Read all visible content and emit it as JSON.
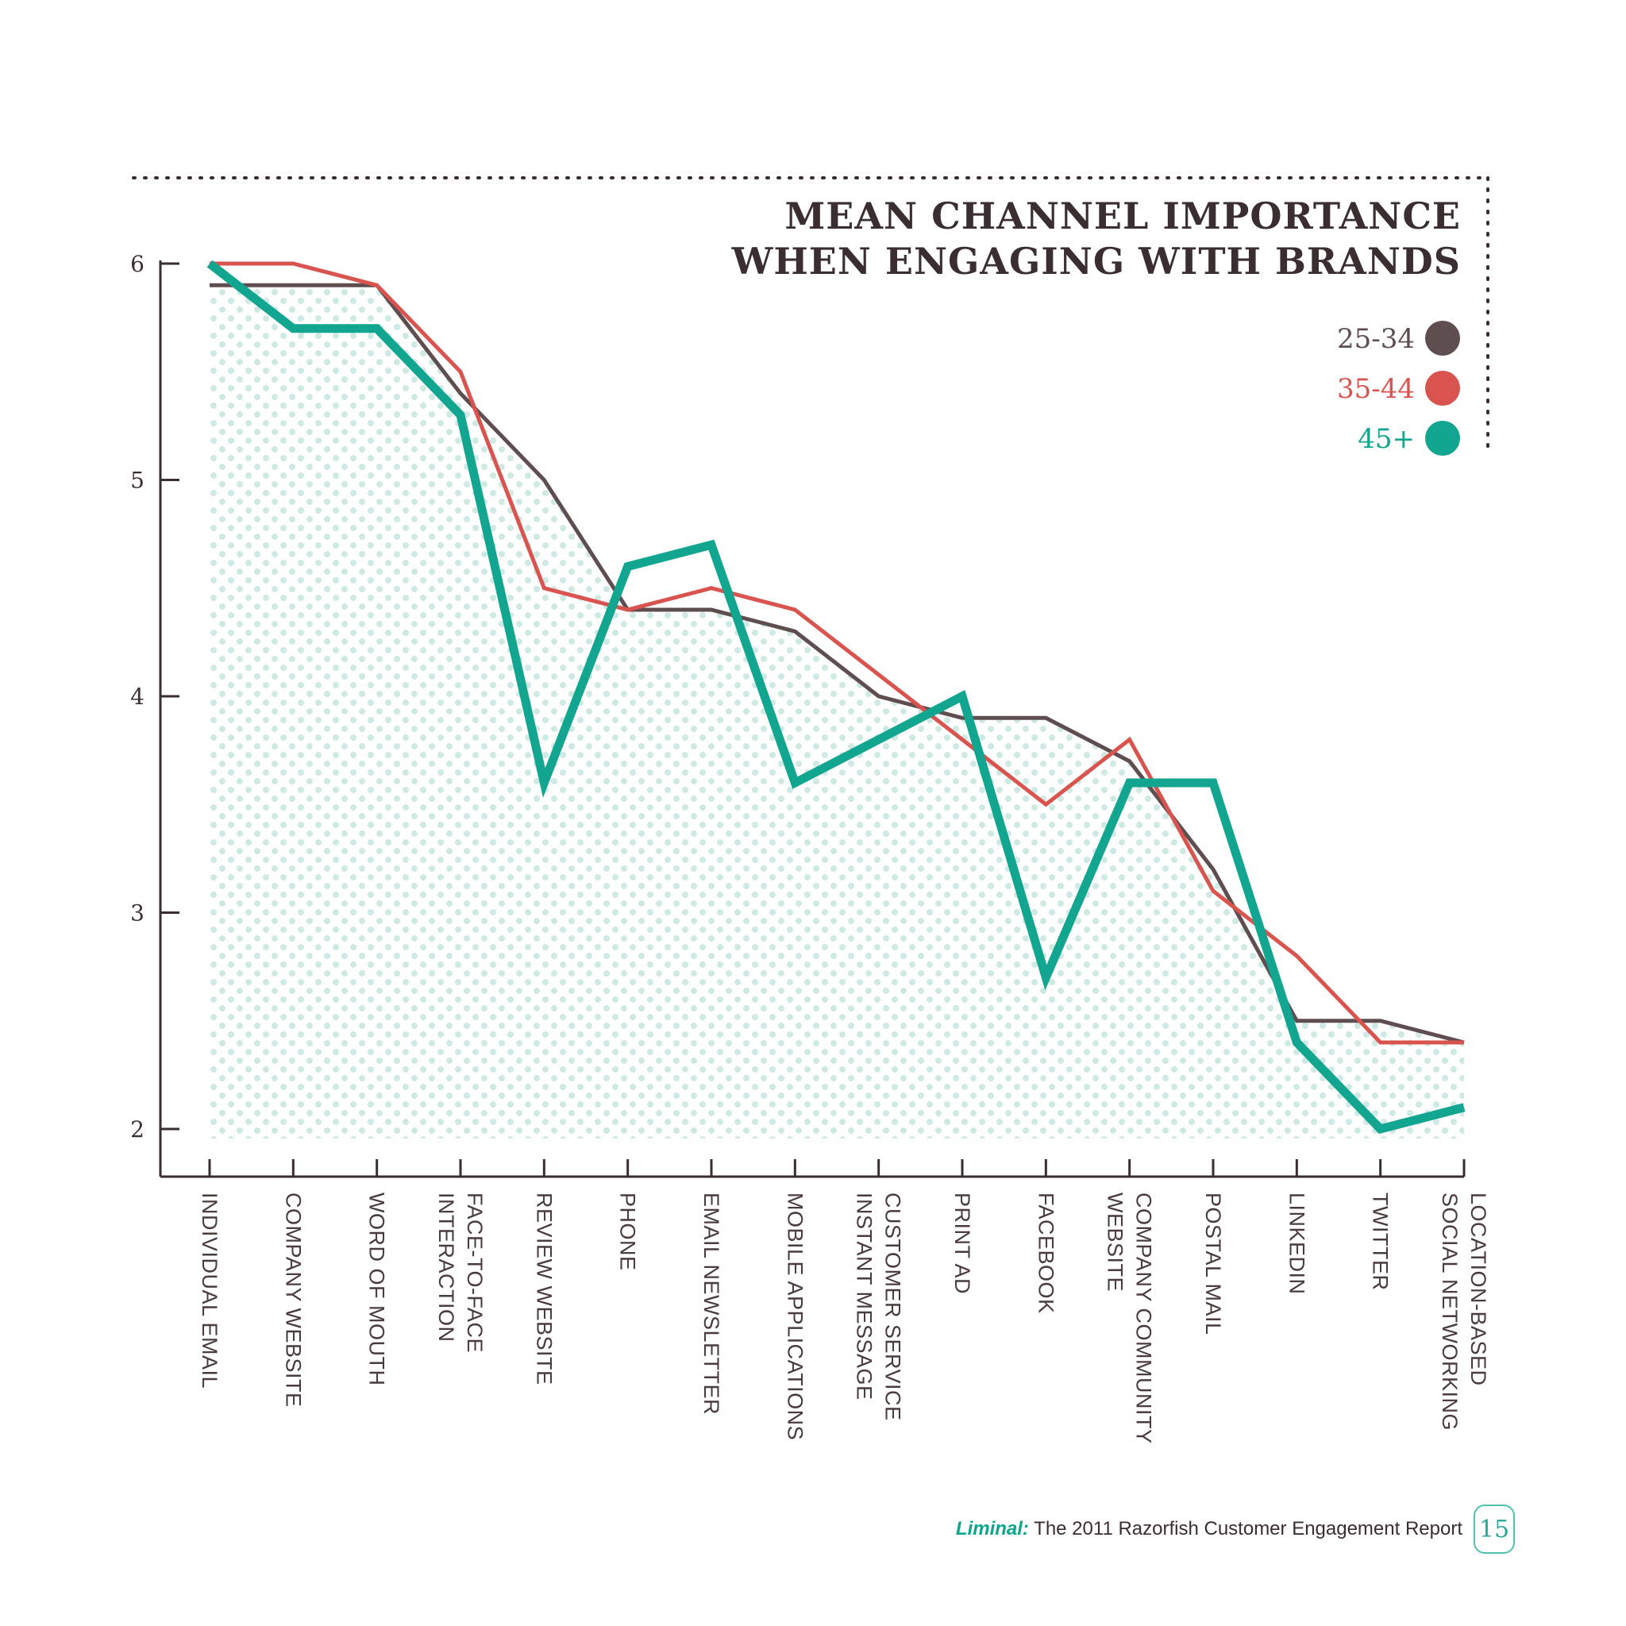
{
  "chart_data": {
    "type": "line",
    "title_lines": [
      "MEAN CHANNEL IMPORTANCE",
      "WHEN ENGAGING WITH BRANDS"
    ],
    "categories": [
      "INDIVIDUAL EMAIL",
      "COMPANY WEBSITE",
      "WORD OF MOUTH",
      "FACE-TO-FACE|INTERACTION",
      "REVIEW WEBSITE",
      "PHONE",
      "EMAIL NEWSLETTER",
      "MOBILE APPLICATIONS",
      "CUSTOMER SERVICE|INSTANT MESSAGE",
      "PRINT AD",
      "FACEBOOK",
      "COMPANY COMMUNITY|WEBSITE",
      "POSTAL MAIL",
      "LINKEDIN",
      "TWITTER",
      "LOCATION-BASED|SOCIAL NETWORKING"
    ],
    "series": [
      {
        "name": "25-34",
        "color": "#5e4e50",
        "values": [
          5.9,
          5.9,
          5.9,
          5.4,
          5.0,
          4.4,
          4.4,
          4.3,
          4.0,
          3.9,
          3.9,
          3.7,
          3.2,
          2.5,
          2.5,
          2.4
        ]
      },
      {
        "name": "35-44",
        "color": "#d9544e",
        "values": [
          6.0,
          6.0,
          5.9,
          5.5,
          4.5,
          4.4,
          4.5,
          4.4,
          4.1,
          3.8,
          3.5,
          3.8,
          3.1,
          2.8,
          2.4,
          2.4
        ]
      },
      {
        "name": "45+",
        "color": "#12a58f",
        "values": [
          6.0,
          5.7,
          5.7,
          5.3,
          3.6,
          4.6,
          4.7,
          3.6,
          3.8,
          4.0,
          2.7,
          3.6,
          3.6,
          2.4,
          2.0,
          2.1
        ]
      }
    ],
    "yticks": [
      2,
      3,
      4,
      5,
      6
    ],
    "ylim": [
      1.78,
      6.0
    ],
    "legend_position": "top-right",
    "fill": "dotted area under 25-34 series"
  },
  "footer": {
    "brand": "Liminal:",
    "text": "The 2011 Razorfish Customer Engagement Report",
    "page_number": "15"
  }
}
